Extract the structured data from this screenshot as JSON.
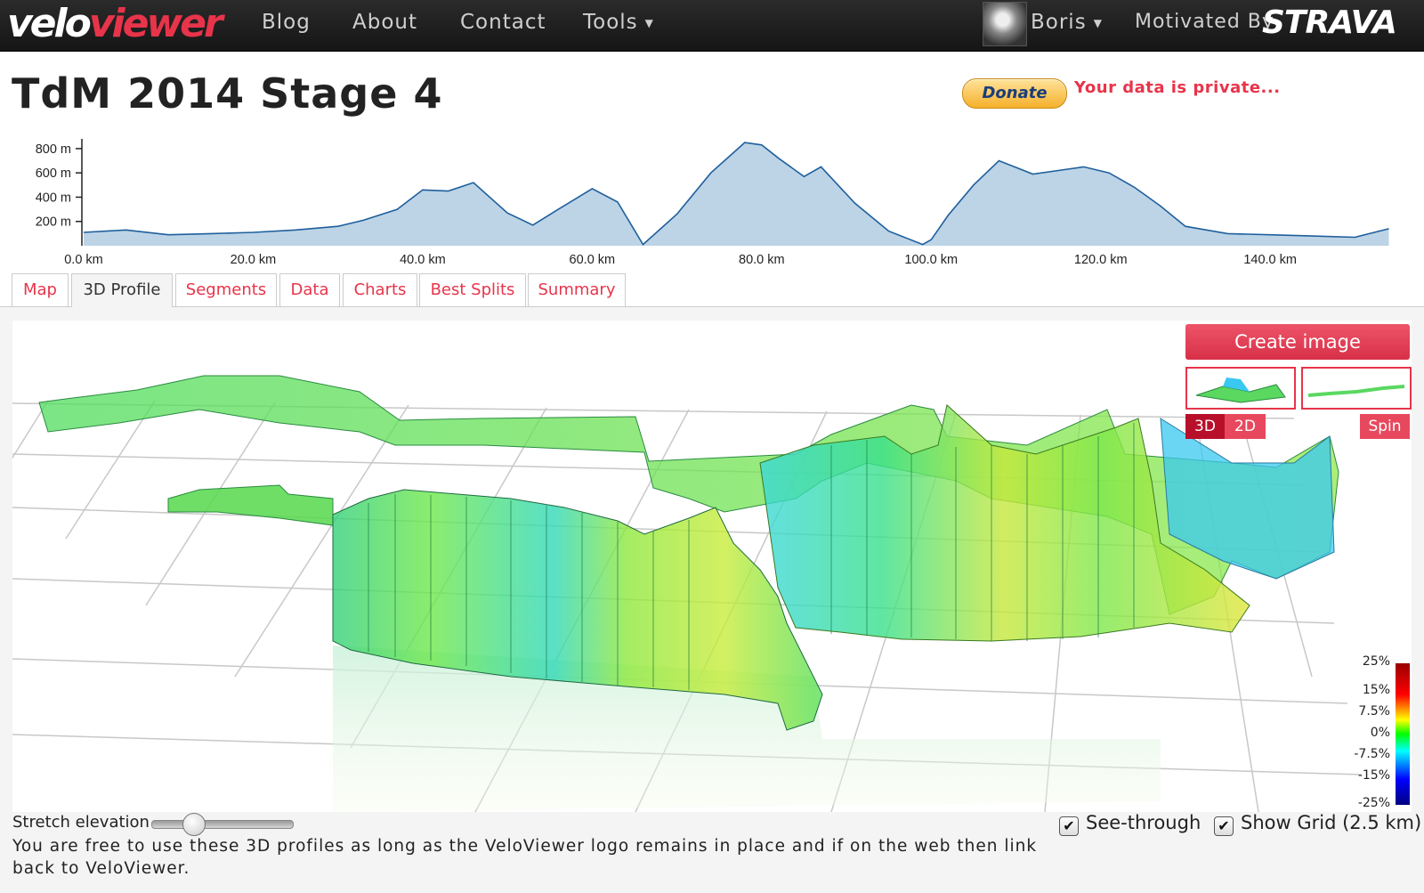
{
  "nav": {
    "logo_velo": "velo",
    "logo_viewer": "viewer",
    "links": [
      "Blog",
      "About",
      "Contact",
      "Tools"
    ],
    "user": "Boris",
    "motivated_by": "Motivated By",
    "strava": "STRAVA"
  },
  "page": {
    "title": "TdM 2014 Stage 4",
    "donate": "Donate",
    "privacy": "Your data is private..."
  },
  "tabs": [
    "Map",
    "3D Profile",
    "Segments",
    "Data",
    "Charts",
    "Best Splits",
    "Summary"
  ],
  "active_tab": "3D Profile",
  "viewer": {
    "create_image": "Create image",
    "mode_3d": "3D",
    "mode_2d": "2D",
    "spin": "Spin",
    "gradient_scale": [
      "25%",
      "15%",
      "7.5%",
      "0%",
      "-7.5%",
      "-15%",
      "-25%"
    ],
    "stretch_label": "Stretch elevation",
    "stretch_value": 0.3,
    "see_through": "See-through",
    "see_through_checked": true,
    "show_grid": "Show Grid (2.5 km)",
    "show_grid_checked": true,
    "usage_note": "You are free to use these 3D profiles as long as the VeloViewer logo remains in place and if on the web then link back to VeloViewer."
  },
  "chart_data": {
    "type": "area",
    "title": "",
    "xlabel": "",
    "ylabel": "",
    "x_ticks": [
      "0.0 km",
      "20.0 km",
      "40.0 km",
      "60.0 km",
      "80.0 km",
      "100.0 km",
      "120.0 km",
      "140.0 km"
    ],
    "y_ticks": [
      "200 m",
      "400 m",
      "600 m",
      "800 m"
    ],
    "xlim": [
      0,
      155
    ],
    "ylim": [
      0,
      880
    ],
    "x": [
      0,
      5,
      10,
      15,
      20,
      25,
      30,
      33,
      37,
      40,
      43,
      46,
      50,
      53,
      56,
      60,
      63,
      66,
      70,
      74,
      78,
      80,
      82,
      85,
      87,
      89,
      91,
      95,
      99,
      100,
      102,
      105,
      108,
      112,
      115,
      118,
      121,
      124,
      127,
      130,
      135,
      140,
      145,
      150,
      154
    ],
    "series": [
      {
        "values": [
          110,
          130,
          90,
          100,
          110,
          130,
          160,
          210,
          300,
          460,
          450,
          520,
          270,
          170,
          300,
          470,
          360,
          10,
          260,
          600,
          850,
          830,
          720,
          570,
          650,
          500,
          350,
          120,
          10,
          50,
          250,
          500,
          700,
          590,
          620,
          650,
          600,
          480,
          330,
          160,
          100,
          90,
          80,
          70,
          140
        ]
      }
    ],
    "color_fill": "#bcd4e6",
    "color_line": "#1f5f9c"
  }
}
